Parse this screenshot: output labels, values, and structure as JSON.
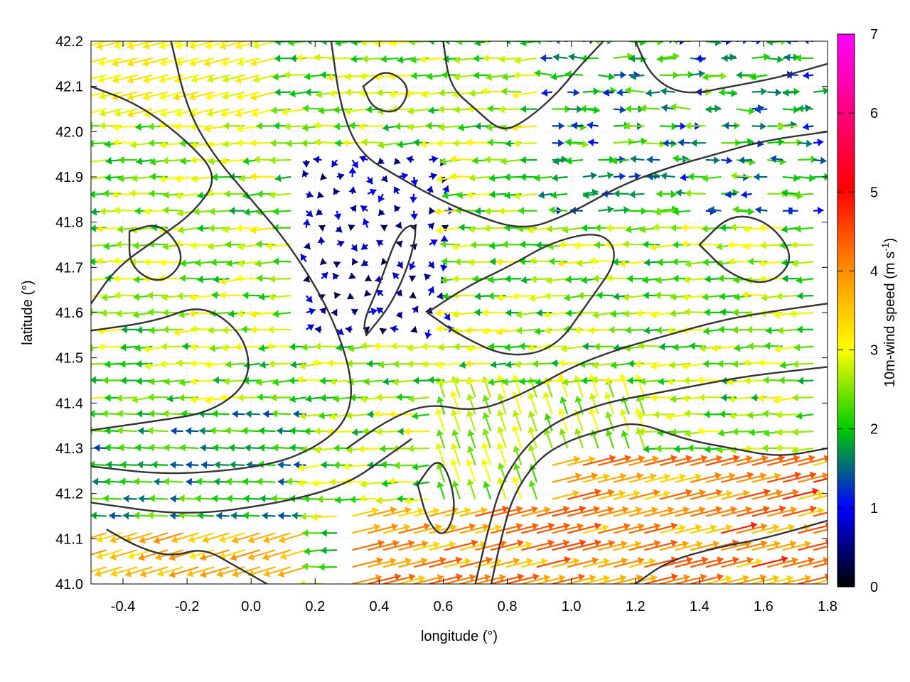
{
  "chart_data": {
    "type": "vector-field",
    "xlabel": "longitude (°)",
    "ylabel": "latitude (°)",
    "xlim": [
      -0.5,
      1.8
    ],
    "ylim": [
      41.0,
      42.2
    ],
    "xticks": [
      "-0.4",
      "-0.2",
      "0.0",
      "0.2",
      "0.4",
      "0.6",
      "0.8",
      "1.0",
      "1.2",
      "1.4",
      "1.6",
      "1.8"
    ],
    "xtick_values": [
      -0.4,
      -0.2,
      0.0,
      0.2,
      0.4,
      0.6,
      0.8,
      1.0,
      1.2,
      1.4,
      1.6,
      1.8
    ],
    "yticks": [
      "41.0",
      "41.1",
      "41.2",
      "41.3",
      "41.4",
      "41.5",
      "41.6",
      "41.7",
      "41.8",
      "41.9",
      "42.0",
      "42.1",
      "42.2"
    ],
    "ytick_values": [
      41.0,
      41.1,
      41.2,
      41.3,
      41.4,
      41.5,
      41.6,
      41.7,
      41.8,
      41.9,
      42.0,
      42.1,
      42.2
    ],
    "grid": true,
    "colorbar": {
      "label": "10m-wind speed (m s",
      "label_sup": "-1",
      "label_end": ")",
      "range": [
        0,
        7
      ],
      "ticks": [
        "0",
        "1",
        "2",
        "3",
        "4",
        "5",
        "6",
        "7"
      ],
      "tick_values": [
        0,
        1,
        2,
        3,
        4,
        5,
        6,
        7
      ],
      "colors": [
        "#000000",
        "#0000ff",
        "#00cc00",
        "#ffff00",
        "#ff8800",
        "#ff0000",
        "#ff00ff"
      ]
    },
    "contour_color": "#333333",
    "dominant_flow": "westward (from east) in north, eastward in south-east"
  }
}
